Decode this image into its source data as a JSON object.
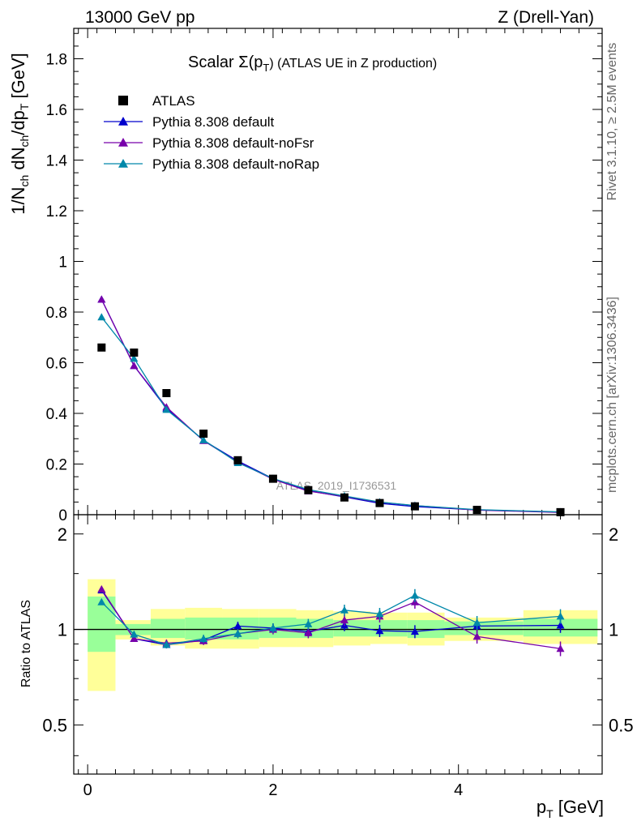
{
  "header": {
    "left": "13000 GeV pp",
    "right": "Z (Drell-Yan)"
  },
  "side_labels": {
    "rivet": "Rivet 3.1.10, ≥ 2.5M events",
    "mcplots": "mcplots.cern.ch [arXiv:1306.3436]"
  },
  "chart_data": {
    "type": "scatter",
    "title": "Scalar Σ(pT) (ATLAS UE in Z production)",
    "title_main": "Scalar Σ(p",
    "title_sub": "T",
    "title_rest": ") (ATLAS UE in Z production)",
    "watermark": "ATLAS_2019_I1736531",
    "xlabel": "pT [GeV]",
    "ylabel": "1/Nch dNch/dpT [GeV]",
    "ratio_ylabel": "Ratio to ATLAS",
    "xlim": [
      -0.15,
      5.55
    ],
    "ylim": [
      0,
      1.92
    ],
    "ratio_ylim": [
      0.35,
      2.3
    ],
    "x_ticks": [
      "0",
      "2",
      "4"
    ],
    "x_tick_values": [
      0,
      2,
      4
    ],
    "y_ticks": [
      "0",
      "0.2",
      "0.4",
      "0.6",
      "0.8",
      "1",
      "1.2",
      "1.4",
      "1.6",
      "1.8"
    ],
    "y_tick_values": [
      0,
      0.2,
      0.4,
      0.6,
      0.8,
      1.0,
      1.2,
      1.4,
      1.6,
      1.8
    ],
    "ratio_ticks": [
      "0.5",
      "1",
      "2"
    ],
    "ratio_tick_values": [
      0.5,
      1,
      2
    ],
    "x": [
      0.15,
      0.5,
      0.85,
      1.25,
      1.62,
      2.0,
      2.38,
      2.77,
      3.15,
      3.53,
      4.2,
      5.1
    ],
    "data": {
      "name": "ATLAS",
      "color": "#000000",
      "values": [
        0.66,
        0.64,
        0.48,
        0.32,
        0.215,
        0.142,
        0.097,
        0.068,
        0.046,
        0.033,
        0.019,
        0.01
      ]
    },
    "series": [
      {
        "name": "Pythia 8.308 default",
        "color": "#0000cc",
        "values": [
          0.85,
          0.588,
          0.42,
          0.293,
          0.212,
          0.142,
          0.095,
          0.07,
          0.045,
          0.032,
          0.019,
          0.01
        ],
        "ratio": [
          1.33,
          0.935,
          0.895,
          0.925,
          1.025,
          1.01,
          0.985,
          1.03,
          0.99,
          0.985,
          1.025,
          1.03
        ]
      },
      {
        "name": "Pythia 8.308 default-noFsr",
        "color": "#7700aa",
        "values": [
          0.85,
          0.588,
          0.425,
          0.292,
          0.208,
          0.14,
          0.093,
          0.072,
          0.049,
          0.036,
          0.018,
          0.009
        ],
        "ratio": [
          1.34,
          0.935,
          0.905,
          0.92,
          0.97,
          1.0,
          0.975,
          1.07,
          1.1,
          1.22,
          0.95,
          0.87
        ]
      },
      {
        "name": "Pythia 8.308 default-noRap",
        "color": "#0088aa",
        "values": [
          0.78,
          0.617,
          0.415,
          0.295,
          0.205,
          0.143,
          0.099,
          0.074,
          0.05,
          0.036,
          0.02,
          0.011
        ],
        "ratio": [
          1.22,
          0.965,
          0.895,
          0.935,
          0.97,
          1.01,
          1.04,
          1.15,
          1.12,
          1.28,
          1.05,
          1.1
        ]
      }
    ],
    "ratio_bins": [
      {
        "x0": 0.0,
        "x1": 0.3,
        "g": [
          0.85,
          1.27
        ],
        "y": [
          0.64,
          1.44
        ]
      },
      {
        "x0": 0.3,
        "x1": 0.68,
        "g": [
          0.96,
          1.04
        ],
        "y": [
          0.93,
          1.07
        ]
      },
      {
        "x0": 0.68,
        "x1": 1.05,
        "g": [
          0.94,
          1.08
        ],
        "y": [
          0.89,
          1.16
        ]
      },
      {
        "x0": 1.05,
        "x1": 1.45,
        "g": [
          0.93,
          1.09
        ],
        "y": [
          0.87,
          1.17
        ]
      },
      {
        "x0": 1.45,
        "x1": 1.85,
        "g": [
          0.93,
          1.09
        ],
        "y": [
          0.87,
          1.16
        ]
      },
      {
        "x0": 1.85,
        "x1": 2.25,
        "g": [
          0.94,
          1.09
        ],
        "y": [
          0.88,
          1.16
        ]
      },
      {
        "x0": 2.25,
        "x1": 2.65,
        "g": [
          0.94,
          1.08
        ],
        "y": [
          0.88,
          1.15
        ]
      },
      {
        "x0": 2.65,
        "x1": 3.05,
        "g": [
          0.95,
          1.07
        ],
        "y": [
          0.89,
          1.14
        ]
      },
      {
        "x0": 3.05,
        "x1": 3.45,
        "g": [
          0.95,
          1.07
        ],
        "y": [
          0.9,
          1.13
        ]
      },
      {
        "x0": 3.45,
        "x1": 3.85,
        "g": [
          0.94,
          1.07
        ],
        "y": [
          0.89,
          1.13
        ]
      },
      {
        "x0": 3.85,
        "x1": 4.7,
        "g": [
          0.96,
          1.06
        ],
        "y": [
          0.92,
          1.09
        ]
      },
      {
        "x0": 4.7,
        "x1": 5.5,
        "g": [
          0.95,
          1.08
        ],
        "y": [
          0.9,
          1.15
        ]
      }
    ]
  }
}
